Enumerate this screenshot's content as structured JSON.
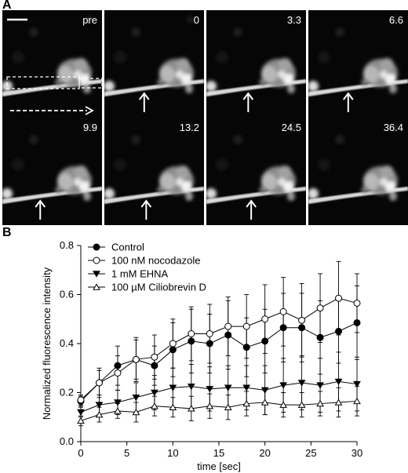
{
  "panel_a": {
    "label": "A",
    "frames": [
      {
        "time": "pre",
        "arrow": false,
        "pos": 0
      },
      {
        "time": "0",
        "arrow": true,
        "pos": 0.4
      },
      {
        "time": "3.3",
        "arrow": true,
        "pos": 0.42
      },
      {
        "time": "6.6",
        "arrow": true,
        "pos": 0.4
      },
      {
        "time": "9.9",
        "arrow": true,
        "pos": 0.38
      },
      {
        "time": "13.2",
        "arrow": true,
        "pos": 0.42
      },
      {
        "time": "24.5",
        "arrow": true,
        "pos": 0.45
      },
      {
        "time": "36.4",
        "arrow": false,
        "pos": 0
      }
    ]
  },
  "panel_b": {
    "label": "B"
  },
  "chart_data": {
    "type": "line",
    "xlabel": "time [sec]",
    "ylabel": "Normalized fluorescence intensity",
    "xlim": [
      0,
      30
    ],
    "ylim": [
      0,
      0.8
    ],
    "xticks": [
      0,
      5,
      10,
      15,
      20,
      25,
      30
    ],
    "yticks": [
      0.0,
      0.2,
      0.4,
      0.6,
      0.8
    ],
    "grid": false,
    "legend_position": "top-left",
    "x": [
      0,
      2,
      4,
      6,
      8,
      10,
      12,
      14,
      16,
      18,
      20,
      22,
      24,
      26,
      28,
      30
    ],
    "series": [
      {
        "name": "Control",
        "marker": "filled-circle",
        "values": [
          0.165,
          0.24,
          0.31,
          0.335,
          0.31,
          0.375,
          0.41,
          0.4,
          0.435,
          0.385,
          0.41,
          0.465,
          0.465,
          0.425,
          0.45,
          0.485
        ],
        "errors": [
          0.02,
          0.06,
          0.08,
          0.09,
          0.08,
          0.11,
          0.13,
          0.12,
          0.14,
          0.12,
          0.13,
          0.14,
          0.14,
          0.15,
          0.13,
          0.15
        ]
      },
      {
        "name": "100 nM nocodazole",
        "marker": "open-circle",
        "values": [
          0.17,
          0.24,
          0.28,
          0.335,
          0.345,
          0.4,
          0.44,
          0.44,
          0.47,
          0.47,
          0.5,
          0.53,
          0.495,
          0.545,
          0.585,
          0.565
        ],
        "errors": [
          0.02,
          0.05,
          0.07,
          0.08,
          0.09,
          0.1,
          0.11,
          0.12,
          0.12,
          0.13,
          0.14,
          0.14,
          0.15,
          0.14,
          0.15,
          0.12
        ]
      },
      {
        "name": "1 mM EHNA",
        "marker": "filled-triangle-down",
        "values": [
          0.12,
          0.15,
          0.16,
          0.18,
          0.2,
          0.22,
          0.225,
          0.215,
          0.22,
          0.22,
          0.21,
          0.23,
          0.24,
          0.23,
          0.245,
          0.235
        ],
        "errors": [
          0.02,
          0.04,
          0.05,
          0.06,
          0.07,
          0.08,
          0.09,
          0.09,
          0.09,
          0.09,
          0.1,
          0.11,
          0.11,
          0.11,
          0.12,
          0.11
        ]
      },
      {
        "name": "100 µM Ciliobrevin D",
        "marker": "open-triangle-up",
        "values": [
          0.085,
          0.11,
          0.125,
          0.12,
          0.145,
          0.14,
          0.135,
          0.145,
          0.14,
          0.155,
          0.16,
          0.15,
          0.15,
          0.155,
          0.16,
          0.165
        ],
        "errors": [
          0.02,
          0.03,
          0.03,
          0.04,
          0.04,
          0.04,
          0.05,
          0.05,
          0.05,
          0.05,
          0.05,
          0.05,
          0.05,
          0.05,
          0.06,
          0.06
        ]
      }
    ]
  }
}
